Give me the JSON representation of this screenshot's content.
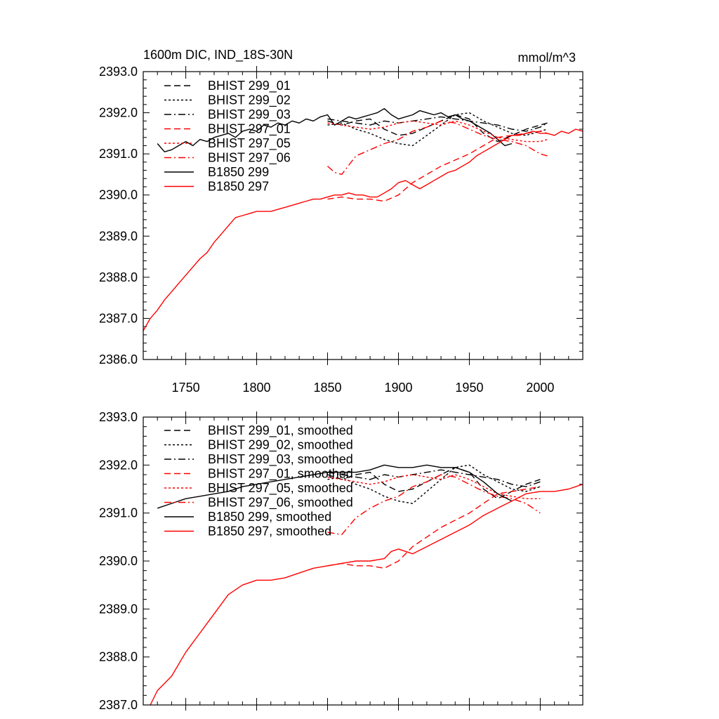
{
  "chart_data": [
    {
      "type": "line",
      "title": "1600m DIC, IND_18S-30N",
      "units": "mmol/m^3",
      "xlim": [
        1720,
        2030
      ],
      "ylim": [
        2386.0,
        2393.0
      ],
      "xticks": [
        1750,
        1800,
        1850,
        1900,
        1950,
        2000
      ],
      "xtick_labels": [
        "1750",
        "1800",
        "1850",
        "1900",
        "1950",
        "2000"
      ],
      "yticks": [
        2386.0,
        2387.0,
        2388.0,
        2389.0,
        2390.0,
        2391.0,
        2392.0,
        2393.0
      ],
      "ytick_labels": [
        "2386.0",
        "2387.0",
        "2388.0",
        "2389.0",
        "2390.0",
        "2391.0",
        "2392.0",
        "2393.0"
      ],
      "series": [
        {
          "name": "B1850 299",
          "color": "#000000",
          "dash": "none",
          "x": [
            1730,
            1735,
            1740,
            1745,
            1750,
            1755,
            1760,
            1765,
            1770,
            1775,
            1780,
            1785,
            1790,
            1795,
            1800,
            1805,
            1810,
            1815,
            1820,
            1825,
            1830,
            1835,
            1840,
            1845,
            1850,
            1855,
            1860,
            1865,
            1870,
            1875,
            1880,
            1885,
            1890,
            1895,
            1900,
            1905,
            1910,
            1915,
            1920,
            1925,
            1930,
            1935,
            1940,
            1945,
            1950,
            1955,
            1960,
            1965,
            1970,
            1975,
            1980
          ],
          "y": [
            2391.25,
            2391.05,
            2391.1,
            2391.2,
            2391.3,
            2391.2,
            2391.35,
            2391.3,
            2391.4,
            2391.45,
            2391.5,
            2391.4,
            2391.55,
            2391.6,
            2391.55,
            2391.7,
            2391.65,
            2391.75,
            2391.7,
            2391.8,
            2391.75,
            2391.85,
            2391.8,
            2391.9,
            2391.95,
            2391.7,
            2391.8,
            2391.9,
            2391.85,
            2391.9,
            2391.95,
            2392.0,
            2392.1,
            2391.95,
            2391.85,
            2391.9,
            2391.95,
            2392.05,
            2392.0,
            2391.95,
            2392.0,
            2391.9,
            2391.95,
            2391.85,
            2391.8,
            2391.7,
            2391.6,
            2391.5,
            2391.35,
            2391.2,
            2391.25
          ]
        },
        {
          "name": "B1850 297",
          "color": "#ff0000",
          "dash": "none",
          "x": [
            1720,
            1725,
            1730,
            1735,
            1740,
            1745,
            1750,
            1755,
            1760,
            1765,
            1770,
            1775,
            1780,
            1785,
            1790,
            1795,
            1800,
            1805,
            1810,
            1815,
            1820,
            1825,
            1830,
            1835,
            1840,
            1845,
            1850,
            1855,
            1860,
            1865,
            1870,
            1875,
            1880,
            1885,
            1890,
            1895,
            1900,
            1905,
            1910,
            1915,
            1920,
            1925,
            1930,
            1935,
            1940,
            1945,
            1950,
            1955,
            1960,
            1965,
            1970,
            1975,
            1980,
            1985,
            1990,
            1995,
            2000,
            2005,
            2010,
            2015,
            2020,
            2025,
            2030
          ],
          "y": [
            2386.7,
            2387.0,
            2387.2,
            2387.45,
            2387.65,
            2387.85,
            2388.05,
            2388.25,
            2388.45,
            2388.6,
            2388.85,
            2389.05,
            2389.25,
            2389.45,
            2389.5,
            2389.55,
            2389.6,
            2389.6,
            2389.6,
            2389.65,
            2389.7,
            2389.75,
            2389.8,
            2389.85,
            2389.9,
            2389.9,
            2389.95,
            2390.0,
            2390.0,
            2390.05,
            2390.0,
            2390.0,
            2389.95,
            2389.95,
            2390.05,
            2390.15,
            2390.3,
            2390.35,
            2390.25,
            2390.15,
            2390.25,
            2390.35,
            2390.45,
            2390.55,
            2390.6,
            2390.7,
            2390.8,
            2390.95,
            2391.05,
            2391.15,
            2391.25,
            2391.35,
            2391.45,
            2391.45,
            2391.5,
            2391.55,
            2391.5,
            2391.5,
            2391.45,
            2391.55,
            2391.5,
            2391.6,
            2391.55
          ]
        },
        {
          "name": "BHIST 299_01",
          "color": "#000000",
          "dash": "9 5",
          "x": [
            1850,
            1860,
            1870,
            1880,
            1890,
            1900,
            1910,
            1920,
            1930,
            1940,
            1950,
            1960,
            1970,
            1980,
            1990,
            2000,
            2005
          ],
          "y": [
            2391.8,
            2391.7,
            2391.8,
            2391.85,
            2391.6,
            2391.45,
            2391.5,
            2391.65,
            2391.8,
            2391.95,
            2391.85,
            2391.5,
            2391.3,
            2391.45,
            2391.6,
            2391.7,
            2391.75
          ]
        },
        {
          "name": "BHIST 299_02",
          "color": "#000000",
          "dash": "3 3",
          "x": [
            1850,
            1860,
            1870,
            1880,
            1890,
            1900,
            1910,
            1920,
            1930,
            1940,
            1950,
            1960,
            1970,
            1980,
            1990,
            2000,
            2005
          ],
          "y": [
            2391.7,
            2391.75,
            2391.6,
            2391.5,
            2391.35,
            2391.25,
            2391.2,
            2391.45,
            2391.7,
            2391.95,
            2392.0,
            2391.8,
            2391.65,
            2391.5,
            2391.45,
            2391.55,
            2391.6
          ]
        },
        {
          "name": "BHIST 299_03",
          "color": "#000000",
          "dash": "10 4 2 4",
          "x": [
            1850,
            1860,
            1870,
            1880,
            1890,
            1900,
            1910,
            1920,
            1930,
            1940,
            1950,
            1960,
            1970,
            1980,
            1990,
            2000,
            2005
          ],
          "y": [
            2391.85,
            2391.8,
            2391.75,
            2391.7,
            2391.8,
            2391.75,
            2391.8,
            2391.85,
            2391.9,
            2391.85,
            2391.8,
            2391.75,
            2391.7,
            2391.6,
            2391.55,
            2391.65,
            2391.75
          ]
        },
        {
          "name": "BHIST 297_01",
          "color": "#ff0000",
          "dash": "9 5",
          "x": [
            1850,
            1860,
            1870,
            1880,
            1890,
            1900,
            1910,
            1920,
            1930,
            1940,
            1950,
            1960,
            1970,
            1980,
            1990,
            2000,
            2005
          ],
          "y": [
            2389.9,
            2389.95,
            2389.9,
            2389.9,
            2389.85,
            2390.0,
            2390.3,
            2390.5,
            2390.7,
            2390.85,
            2391.0,
            2391.2,
            2391.4,
            2391.45,
            2391.5,
            2391.55,
            2391.5
          ]
        },
        {
          "name": "BHIST 297_05",
          "color": "#ff0000",
          "dash": "3 3",
          "x": [
            1850,
            1860,
            1870,
            1880,
            1890,
            1900,
            1910,
            1920,
            1930,
            1940,
            1950,
            1960,
            1970,
            1980,
            1990,
            2000,
            2005
          ],
          "y": [
            2391.75,
            2391.7,
            2391.65,
            2391.6,
            2391.65,
            2391.75,
            2391.8,
            2391.75,
            2391.7,
            2391.8,
            2391.7,
            2391.55,
            2391.4,
            2391.35,
            2391.3,
            2391.3,
            2391.35
          ]
        },
        {
          "name": "BHIST 297_06",
          "color": "#ff0000",
          "dash": "10 4 2 4",
          "x": [
            1850,
            1855,
            1860,
            1870,
            1880,
            1890,
            1900,
            1910,
            1920,
            1930,
            1940,
            1950,
            1960,
            1970,
            1980,
            1990,
            2000,
            2005
          ],
          "y": [
            2390.7,
            2390.55,
            2390.5,
            2390.95,
            2391.1,
            2391.25,
            2391.35,
            2391.55,
            2391.65,
            2391.8,
            2391.75,
            2391.6,
            2391.45,
            2391.35,
            2391.3,
            2391.2,
            2391.0,
            2390.95
          ]
        }
      ]
    },
    {
      "type": "line",
      "xlim": [
        1720,
        2030
      ],
      "ylim": [
        2387.0,
        2393.0
      ],
      "yticks": [
        2387.0,
        2388.0,
        2389.0,
        2390.0,
        2391.0,
        2392.0,
        2393.0
      ],
      "ytick_labels": [
        "2387.0",
        "2388.0",
        "2389.0",
        "2390.0",
        "2391.0",
        "2392.0",
        "2393.0"
      ],
      "series": [
        {
          "name": "BHIST 299_01, smoothed",
          "color": "#000000",
          "dash": "9 5",
          "x": [
            1850,
            1860,
            1870,
            1880,
            1890,
            1900,
            1910,
            1920,
            1930,
            1940,
            1950,
            1960,
            1970,
            1980,
            1990,
            2000
          ],
          "y": [
            2391.8,
            2391.7,
            2391.8,
            2391.85,
            2391.6,
            2391.45,
            2391.5,
            2391.65,
            2391.8,
            2391.95,
            2391.85,
            2391.5,
            2391.3,
            2391.45,
            2391.6,
            2391.7
          ]
        },
        {
          "name": "BHIST 299_02, smoothed",
          "color": "#000000",
          "dash": "3 3",
          "x": [
            1850,
            1860,
            1870,
            1880,
            1890,
            1900,
            1910,
            1920,
            1930,
            1940,
            1950,
            1960,
            1970,
            1980,
            1990,
            2000
          ],
          "y": [
            2391.7,
            2391.75,
            2391.6,
            2391.5,
            2391.35,
            2391.25,
            2391.2,
            2391.45,
            2391.7,
            2391.95,
            2392.0,
            2391.8,
            2391.65,
            2391.5,
            2391.45,
            2391.55
          ]
        },
        {
          "name": "BHIST 299_03, smoothed",
          "color": "#000000",
          "dash": "10 4 2 4",
          "x": [
            1850,
            1860,
            1870,
            1880,
            1890,
            1900,
            1910,
            1920,
            1930,
            1940,
            1950,
            1960,
            1970,
            1980,
            1990,
            2000
          ],
          "y": [
            2391.85,
            2391.8,
            2391.75,
            2391.7,
            2391.8,
            2391.75,
            2391.8,
            2391.85,
            2391.9,
            2391.85,
            2391.8,
            2391.75,
            2391.7,
            2391.6,
            2391.55,
            2391.65
          ]
        },
        {
          "name": "BHIST 297_01, smoothed",
          "color": "#ff0000",
          "dash": "9 5",
          "x": [
            1850,
            1860,
            1870,
            1880,
            1890,
            1900,
            1910,
            1920,
            1930,
            1940,
            1950,
            1960,
            1970,
            1980,
            1990,
            2000
          ],
          "y": [
            2389.9,
            2389.95,
            2389.9,
            2389.9,
            2389.85,
            2390.0,
            2390.3,
            2390.5,
            2390.7,
            2390.85,
            2391.0,
            2391.2,
            2391.4,
            2391.45,
            2391.5,
            2391.55
          ]
        },
        {
          "name": "BHIST 297_05, smoothed",
          "color": "#ff0000",
          "dash": "3 3",
          "x": [
            1850,
            1860,
            1870,
            1880,
            1890,
            1900,
            1910,
            1920,
            1930,
            1940,
            1950,
            1960,
            1970,
            1980,
            1990,
            2000
          ],
          "y": [
            2391.75,
            2391.7,
            2391.65,
            2391.6,
            2391.65,
            2391.75,
            2391.8,
            2391.75,
            2391.7,
            2391.8,
            2391.7,
            2391.55,
            2391.4,
            2391.35,
            2391.3,
            2391.3
          ]
        },
        {
          "name": "BHIST 297_06, smoothed",
          "color": "#ff0000",
          "dash": "10 4 2 4",
          "x": [
            1850,
            1860,
            1870,
            1880,
            1890,
            1900,
            1910,
            1920,
            1930,
            1940,
            1950,
            1960,
            1970,
            1980,
            1990,
            2000
          ],
          "y": [
            2390.6,
            2390.55,
            2390.9,
            2391.1,
            2391.25,
            2391.35,
            2391.55,
            2391.65,
            2391.8,
            2391.75,
            2391.6,
            2391.45,
            2391.35,
            2391.3,
            2391.2,
            2391.0
          ]
        },
        {
          "name": "B1850 299, smoothed",
          "color": "#000000",
          "dash": "none",
          "x": [
            1730,
            1740,
            1750,
            1760,
            1770,
            1780,
            1790,
            1800,
            1810,
            1820,
            1830,
            1840,
            1850,
            1860,
            1870,
            1880,
            1890,
            1900,
            1910,
            1920,
            1930,
            1940,
            1950,
            1960,
            1970,
            1980
          ],
          "y": [
            2391.1,
            2391.2,
            2391.3,
            2391.35,
            2391.4,
            2391.45,
            2391.55,
            2391.6,
            2391.65,
            2391.7,
            2391.75,
            2391.8,
            2391.85,
            2391.85,
            2391.85,
            2391.9,
            2392.0,
            2391.95,
            2391.95,
            2392.0,
            2391.95,
            2391.95,
            2391.85,
            2391.65,
            2391.4,
            2391.25
          ]
        },
        {
          "name": "B1850 297, smoothed",
          "color": "#ff0000",
          "dash": "none",
          "x": [
            1725,
            1730,
            1740,
            1750,
            1760,
            1770,
            1780,
            1790,
            1800,
            1810,
            1820,
            1830,
            1840,
            1850,
            1860,
            1870,
            1880,
            1890,
            1895,
            1900,
            1910,
            1920,
            1930,
            1940,
            1950,
            1960,
            1970,
            1980,
            1990,
            2000,
            2010,
            2020,
            2030
          ],
          "y": [
            2387.0,
            2387.3,
            2387.6,
            2388.1,
            2388.5,
            2388.9,
            2389.3,
            2389.5,
            2389.6,
            2389.6,
            2389.65,
            2389.75,
            2389.85,
            2389.9,
            2389.95,
            2390.0,
            2390.0,
            2390.05,
            2390.2,
            2390.25,
            2390.15,
            2390.3,
            2390.45,
            2390.6,
            2390.75,
            2390.95,
            2391.1,
            2391.25,
            2391.4,
            2391.45,
            2391.45,
            2391.5,
            2391.6
          ]
        }
      ]
    }
  ]
}
